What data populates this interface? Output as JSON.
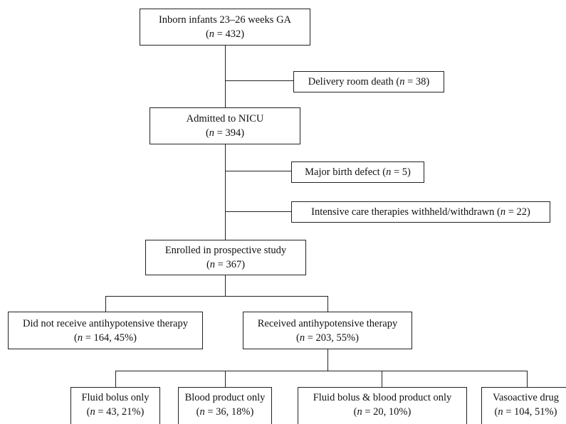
{
  "nodes": {
    "inborn": {
      "line1": "Inborn infants 23–26 weeks GA",
      "n_prefix": "(",
      "n_var": "n",
      "n_rest": " = 432)"
    },
    "dr_death": {
      "label": "Delivery room death (",
      "n_var": "n",
      "n_rest": " = 38)"
    },
    "admitted": {
      "line1": "Admitted to NICU",
      "n_prefix": "(",
      "n_var": "n",
      "n_rest": " = 394)"
    },
    "birth_defect": {
      "label": "Major birth defect (",
      "n_var": "n",
      "n_rest": " = 5)"
    },
    "withheld": {
      "label": "Intensive care therapies withheld/withdrawn (",
      "n_var": "n",
      "n_rest": " = 22)"
    },
    "enrolled": {
      "line1": "Enrolled in prospective study",
      "n_prefix": "(",
      "n_var": "n",
      "n_rest": " = 367)"
    },
    "no_therapy": {
      "line1": "Did not receive antihypotensive therapy",
      "n_prefix": "(",
      "n_var": "n",
      "n_rest": " = 164, 45%)"
    },
    "therapy": {
      "line1": "Received antihypotensive therapy",
      "n_prefix": "(",
      "n_var": "n",
      "n_rest": " = 203, 55%)"
    },
    "fluid": {
      "line1": "Fluid bolus only",
      "n_prefix": "(",
      "n_var": "n",
      "n_rest": " = 43, 21%)"
    },
    "blood": {
      "line1": "Blood product only",
      "n_prefix": "(",
      "n_var": "n",
      "n_rest": " = 36, 18%)"
    },
    "fluid_blood": {
      "line1": "Fluid bolus & blood product only",
      "n_prefix": "(",
      "n_var": "n",
      "n_rest": " = 20, 10%)"
    },
    "vasoactive": {
      "line1": "Vasoactive drug",
      "n_prefix": "(",
      "n_var": "n",
      "n_rest": " = 104, 51%)"
    }
  }
}
